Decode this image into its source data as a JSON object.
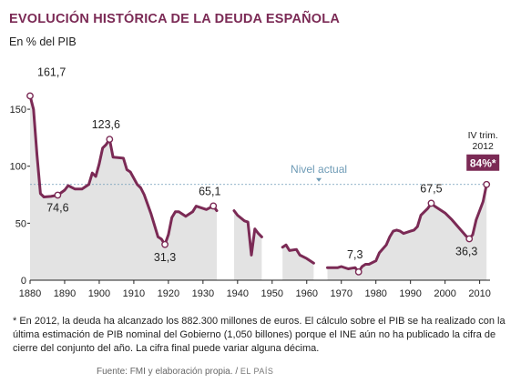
{
  "title": "EVOLUCIÓN HISTÓRICA DE LA DEUDA ESPAÑOLA",
  "subtitle": "En % del PIB",
  "colors": {
    "line": "#7b2a55",
    "area": "#e3e3e3",
    "reference": "#6e9bb6",
    "badge": "#7b2a55"
  },
  "chart_data": {
    "type": "area",
    "title": "EVOLUCIÓN HISTÓRICA DE LA DEUDA ESPAÑOLA",
    "ylabel": "En % del PIB",
    "xlim": [
      1880,
      2013
    ],
    "ylim": [
      0,
      170
    ],
    "x_ticks": [
      1880,
      1890,
      1900,
      1910,
      1920,
      1930,
      1940,
      1950,
      1960,
      1970,
      1980,
      1990,
      2000,
      2010
    ],
    "y_ticks": [
      0,
      50,
      100,
      150
    ],
    "grid": false,
    "reference_line": {
      "value": 84,
      "label": "Nivel actual"
    },
    "series": [
      {
        "segments": [
          [
            [
              1880,
              161.7
            ],
            [
              1881,
              150
            ],
            [
              1882,
              110
            ],
            [
              1883,
              76
            ],
            [
              1884,
              73
            ],
            [
              1886,
              73.5
            ],
            [
              1888,
              74.6
            ],
            [
              1890,
              79
            ],
            [
              1891,
              83
            ],
            [
              1893,
              80
            ],
            [
              1895,
              80
            ],
            [
              1897,
              84
            ],
            [
              1898,
              94
            ],
            [
              1899,
              91
            ],
            [
              1900,
              102
            ],
            [
              1901,
              116
            ],
            [
              1902,
              119
            ],
            [
              1903,
              123.6
            ],
            [
              1904,
              108
            ],
            [
              1907,
              107
            ],
            [
              1908,
              97
            ],
            [
              1909,
              95
            ],
            [
              1911,
              84
            ],
            [
              1912,
              81
            ],
            [
              1913,
              75
            ],
            [
              1915,
              58
            ],
            [
              1917,
              38
            ],
            [
              1918,
              36
            ],
            [
              1919,
              31.3
            ],
            [
              1920,
              40
            ],
            [
              1921,
              55
            ],
            [
              1922,
              60
            ],
            [
              1923,
              60
            ],
            [
              1925,
              56
            ],
            [
              1927,
              60
            ],
            [
              1928,
              65
            ],
            [
              1930,
              63
            ],
            [
              1931,
              62
            ],
            [
              1933,
              65.1
            ],
            [
              1934,
              61
            ]
          ],
          [
            [
              1939,
              61
            ],
            [
              1940,
              57
            ],
            [
              1942,
              52
            ],
            [
              1943,
              51
            ],
            [
              1944,
              22
            ],
            [
              1945,
              45
            ],
            [
              1946,
              41
            ],
            [
              1947,
              38
            ]
          ],
          [
            [
              1953,
              29
            ],
            [
              1954,
              31
            ],
            [
              1955,
              26
            ],
            [
              1957,
              27
            ],
            [
              1958,
              22
            ],
            [
              1960,
              19
            ],
            [
              1962,
              15
            ]
          ],
          [
            [
              1966,
              11
            ],
            [
              1969,
              11
            ],
            [
              1970,
              12
            ],
            [
              1972,
              10
            ],
            [
              1974,
              11
            ],
            [
              1975,
              7.3
            ],
            [
              1976,
              12
            ],
            [
              1977,
              14
            ],
            [
              1978,
              14
            ],
            [
              1980,
              17
            ],
            [
              1981,
              24
            ],
            [
              1983,
              31
            ],
            [
              1984,
              38
            ],
            [
              1985,
              43
            ],
            [
              1986,
              44
            ],
            [
              1987,
              43
            ],
            [
              1988,
              41
            ],
            [
              1990,
              43
            ],
            [
              1991,
              44
            ],
            [
              1992,
              47
            ],
            [
              1993,
              57
            ],
            [
              1994,
              60
            ],
            [
              1995,
              63
            ],
            [
              1996,
              67.5
            ],
            [
              1997,
              65
            ],
            [
              1999,
              61
            ],
            [
              2000,
              59
            ],
            [
              2002,
              53
            ],
            [
              2004,
              46
            ],
            [
              2006,
              39
            ],
            [
              2007,
              36.3
            ],
            [
              2008,
              40
            ],
            [
              2009,
              53
            ],
            [
              2010,
              61
            ],
            [
              2011,
              69
            ],
            [
              2012,
              84
            ]
          ]
        ]
      }
    ],
    "annotations": [
      {
        "x": 1880,
        "y": 161.7,
        "label": "161,7"
      },
      {
        "x": 1888,
        "y": 74.6,
        "label": "74,6"
      },
      {
        "x": 1903,
        "y": 123.6,
        "label": "123,6"
      },
      {
        "x": 1919,
        "y": 31.3,
        "label": "31,3"
      },
      {
        "x": 1933,
        "y": 65.1,
        "label": "65,1"
      },
      {
        "x": 1975,
        "y": 7.3,
        "label": "7,3"
      },
      {
        "x": 1996,
        "y": 67.5,
        "label": "67,5"
      },
      {
        "x": 2007,
        "y": 36.3,
        "label": "36,3"
      },
      {
        "x": 2012,
        "y": 84,
        "label": "84%*",
        "period_line1": "IV trim.",
        "period_line2": "2012"
      }
    ]
  },
  "footnote": "* En 2012, la deuda ha alcanzado los 882.300 millones de euros. El cálculo sobre el PIB se ha realizado con la última estimación de PIB nominal del Gobierno (1,050 billones) porque el INE aún no ha publicado la cifra de cierre del conjunto del año. La cifra final puede variar alguna décima.",
  "source": {
    "text": "Fuente: FMI y elaboración propia.",
    "separator": "/",
    "brand": "EL PAÍS"
  }
}
